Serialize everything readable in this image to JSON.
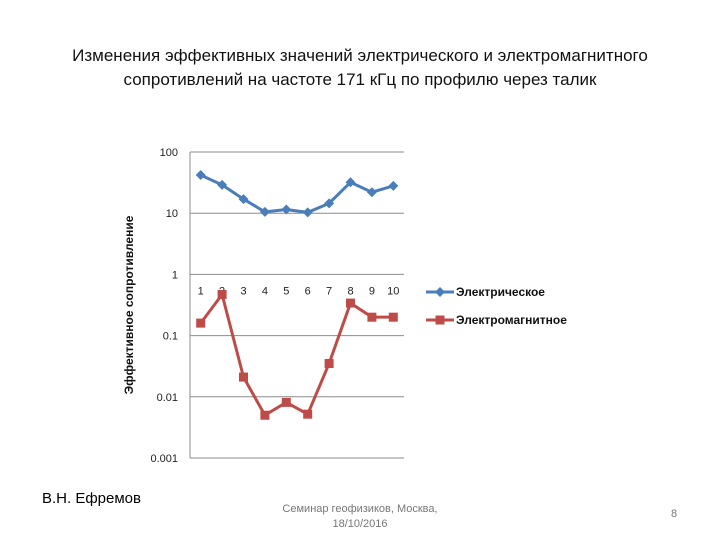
{
  "slide": {
    "title_line1": "Изменения эффективных значений электрического и электромагнитного",
    "title_line2": "сопротивлений на частоте 171 кГц по профилю через талик",
    "author": "В.Н. Ефремов",
    "event_line1": "Семинар геофизиков, Москва,",
    "event_line2": "18/10/2016",
    "page_number": "8"
  },
  "chart_data": {
    "type": "line",
    "ylabel": "Эффективное сопротивление",
    "xlabel": "",
    "yscale": "log",
    "ylim": [
      0.001,
      100
    ],
    "y_ticks": [
      "100",
      "10",
      "1",
      "0.1",
      "0.01",
      "0.001"
    ],
    "categories": [
      "1",
      "2",
      "3",
      "4",
      "5",
      "6",
      "7",
      "8",
      "9",
      "10"
    ],
    "grid": true,
    "legend_position": "right",
    "series": [
      {
        "name": "Электрическое",
        "color": "#4A7EBB",
        "marker": "diamond",
        "values": [
          42,
          29,
          17,
          10.5,
          11.5,
          10.3,
          14.5,
          32,
          22,
          28
        ]
      },
      {
        "name": "Электромагнитное",
        "color": "#BE4B48",
        "marker": "square",
        "values": [
          0.16,
          0.47,
          0.021,
          0.005,
          0.0081,
          0.0052,
          0.035,
          0.34,
          0.2,
          0.2
        ]
      }
    ]
  }
}
